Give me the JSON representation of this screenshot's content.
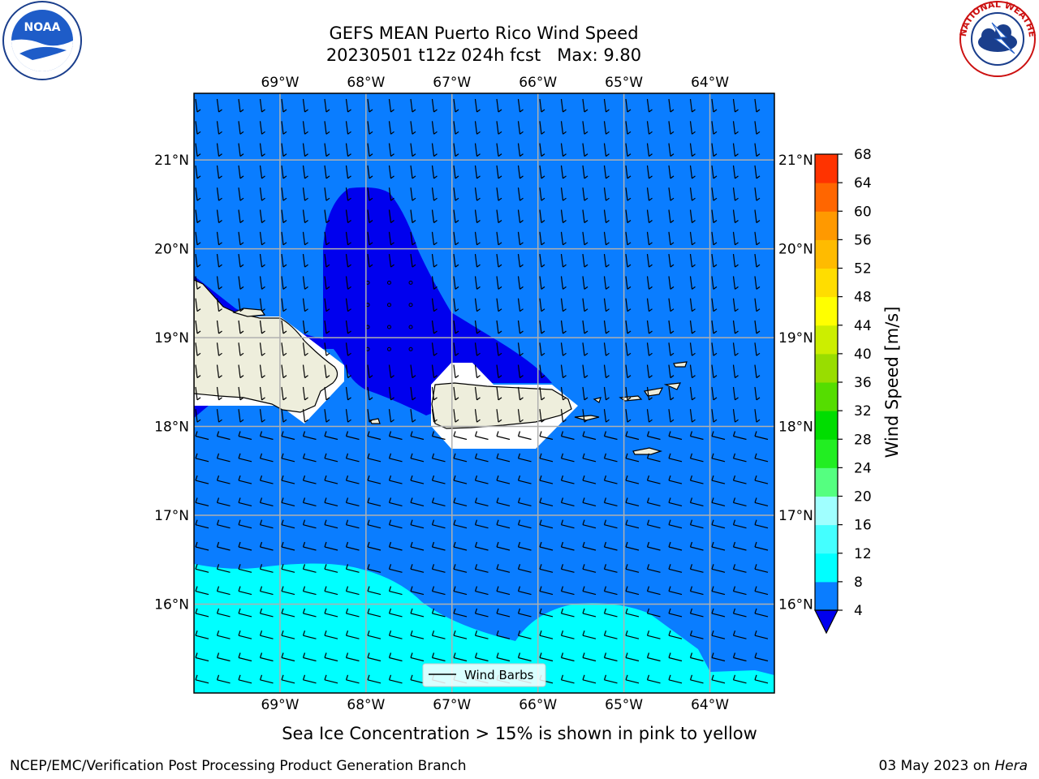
{
  "title": {
    "line1": "GEFS MEAN Puerto Rico Wind Speed",
    "line2": "20230501 t12z 024h fcst   Max: 9.80"
  },
  "logos": {
    "left": {
      "text": "NOAA",
      "icon": "noaa-logo"
    },
    "right": {
      "icon": "nws-logo",
      "ring_text": "NATIONAL WEATHER SERVICE"
    }
  },
  "map": {
    "lon_labels": [
      "69°W",
      "68°W",
      "67°W",
      "66°W",
      "65°W",
      "64°W"
    ],
    "lon_values": [
      -69,
      -68,
      -67,
      -66,
      -65,
      -64
    ],
    "lat_labels": [
      "21°N",
      "20°N",
      "19°N",
      "18°N",
      "17°N",
      "16°N"
    ],
    "lat_values": [
      21,
      20,
      19,
      18,
      17,
      16
    ],
    "lon_range": [
      -70.0,
      -63.25
    ],
    "lat_range": [
      15.0,
      21.75
    ],
    "legend_label": "Wind Barbs",
    "colors": {
      "band_4_8": "#0a7dff",
      "band_below_4": "#0000ee",
      "band_8_12": "#00ffff",
      "land": "#eeeedc",
      "grid": "#b0b0b0"
    }
  },
  "colorbar": {
    "label": "Wind Speed [m/s]",
    "ticks": [
      "4",
      "8",
      "12",
      "16",
      "20",
      "24",
      "28",
      "32",
      "36",
      "40",
      "44",
      "48",
      "52",
      "56",
      "60",
      "64",
      "68"
    ],
    "colors": [
      "#0a7dff",
      "#00ffff",
      "#44ffff",
      "#a0ffff",
      "#55ff80",
      "#22ee22",
      "#00dd00",
      "#55dd00",
      "#99dd00",
      "#ccee00",
      "#ffff00",
      "#ffdd00",
      "#ffbb00",
      "#ff9900",
      "#ff6600",
      "#ff3300"
    ],
    "extend_color": "#0000ee"
  },
  "footer": {
    "note": "Sea Ice Concentration > 15% is shown in pink to yellow",
    "credit": "NCEP/EMC/Verification Post Processing Product Generation Branch",
    "date": "03 May 2023 on ",
    "host": "Hera"
  }
}
